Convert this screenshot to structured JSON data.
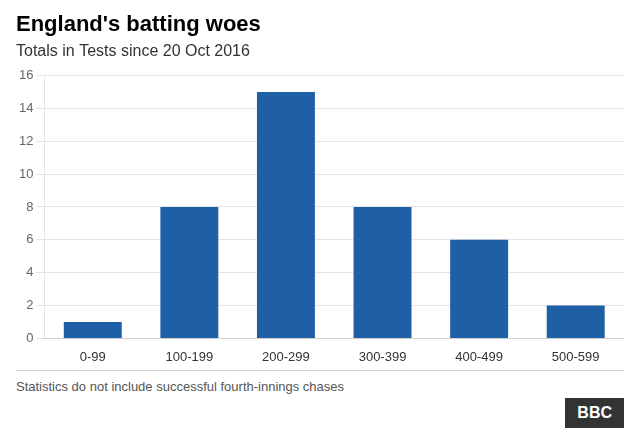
{
  "chart_data": {
    "type": "bar",
    "title": "England's batting woes",
    "subtitle": "Totals in Tests since 20 Oct 2016",
    "categories": [
      "0-99",
      "100-199",
      "200-299",
      "300-399",
      "400-499",
      "500-599"
    ],
    "values": [
      1,
      8,
      15,
      8,
      6,
      2
    ],
    "color": "#1f5fa6",
    "ylim": [
      0,
      16
    ],
    "yticks": [
      0,
      2,
      4,
      6,
      8,
      10,
      12,
      14,
      16
    ],
    "grid": true,
    "annotations": [
      "Statistics do not include successful fourth-innings chases",
      "BBC"
    ]
  }
}
